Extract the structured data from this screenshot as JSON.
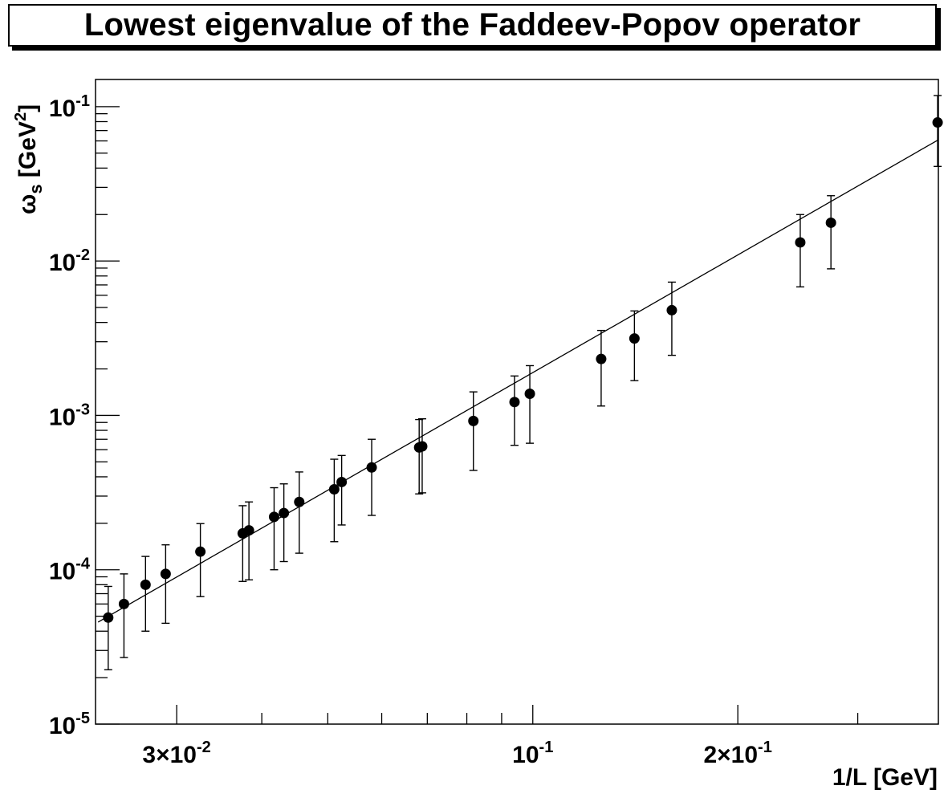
{
  "chart_data": {
    "type": "scatter",
    "title": "Lowest eigenvalue of the Faddeev-Popov operator",
    "xlabel": "1/L [GeV]",
    "ylabel": "ωs [GeV2]",
    "ylabel_parts": {
      "symbol": "ω",
      "subscript": "s",
      "unit_open": " [GeV",
      "power": "2",
      "unit_close": "]"
    },
    "x_scale": "log",
    "y_scale": "log",
    "xlim": [
      0.0228,
      0.394
    ],
    "ylim": [
      1e-05,
      0.15
    ],
    "x_ticks": [
      {
        "value": 0.03,
        "mantissa": "3×10",
        "exponent": "-2"
      },
      {
        "value": 0.1,
        "mantissa": "10",
        "exponent": "-1"
      },
      {
        "value": 0.2,
        "mantissa": "2×10",
        "exponent": "-1"
      }
    ],
    "y_ticks": [
      {
        "value": 1e-05,
        "mantissa": "10",
        "exponent": "-5"
      },
      {
        "value": 0.0001,
        "mantissa": "10",
        "exponent": "-4"
      },
      {
        "value": 0.001,
        "mantissa": "10",
        "exponent": "-3"
      },
      {
        "value": 0.01,
        "mantissa": "10",
        "exponent": "-2"
      },
      {
        "value": 0.1,
        "mantissa": "10",
        "exponent": "-1"
      }
    ],
    "grid": false,
    "legend": "none",
    "series": [
      {
        "points": [
          {
            "x": 0.0238,
            "y": 4.9e-05,
            "ylo": 2.25e-05,
            "yhi": 7.8e-05
          },
          {
            "x": 0.0251,
            "y": 6e-05,
            "ylo": 2.7e-05,
            "yhi": 9.4e-05
          },
          {
            "x": 0.027,
            "y": 8e-05,
            "ylo": 4e-05,
            "yhi": 0.000122
          },
          {
            "x": 0.0289,
            "y": 9.4e-05,
            "ylo": 4.5e-05,
            "yhi": 0.000145
          },
          {
            "x": 0.0325,
            "y": 0.000131,
            "ylo": 6.7e-05,
            "yhi": 0.000199
          },
          {
            "x": 0.0375,
            "y": 0.000172,
            "ylo": 8.4e-05,
            "yhi": 0.00026
          },
          {
            "x": 0.0383,
            "y": 0.00018,
            "ylo": 8.6e-05,
            "yhi": 0.000275
          },
          {
            "x": 0.0417,
            "y": 0.00022,
            "ylo": 0.0001,
            "yhi": 0.00034
          },
          {
            "x": 0.0431,
            "y": 0.000233,
            "ylo": 0.000113,
            "yhi": 0.00036
          },
          {
            "x": 0.0454,
            "y": 0.000275,
            "ylo": 0.000128,
            "yhi": 0.00043
          },
          {
            "x": 0.0511,
            "y": 0.000332,
            "ylo": 0.000152,
            "yhi": 0.00052
          },
          {
            "x": 0.0524,
            "y": 0.00037,
            "ylo": 0.000195,
            "yhi": 0.00055
          },
          {
            "x": 0.058,
            "y": 0.00046,
            "ylo": 0.000225,
            "yhi": 0.0007
          },
          {
            "x": 0.0681,
            "y": 0.00062,
            "ylo": 0.00031,
            "yhi": 0.00094
          },
          {
            "x": 0.0688,
            "y": 0.00063,
            "ylo": 0.000315,
            "yhi": 0.00095
          },
          {
            "x": 0.0818,
            "y": 0.00092,
            "ylo": 0.00044,
            "yhi": 0.00142
          },
          {
            "x": 0.094,
            "y": 0.00122,
            "ylo": 0.00064,
            "yhi": 0.0018
          },
          {
            "x": 0.099,
            "y": 0.00138,
            "ylo": 0.00066,
            "yhi": 0.0021
          },
          {
            "x": 0.126,
            "y": 0.00232,
            "ylo": 0.00115,
            "yhi": 0.00355
          },
          {
            "x": 0.141,
            "y": 0.00315,
            "ylo": 0.00168,
            "yhi": 0.00475
          },
          {
            "x": 0.16,
            "y": 0.0048,
            "ylo": 0.00245,
            "yhi": 0.0073
          },
          {
            "x": 0.247,
            "y": 0.0132,
            "ylo": 0.0068,
            "yhi": 0.02
          },
          {
            "x": 0.274,
            "y": 0.0177,
            "ylo": 0.0089,
            "yhi": 0.0265
          },
          {
            "x": 0.393,
            "y": 0.079,
            "ylo": 0.041,
            "yhi": 0.118
          }
        ]
      }
    ],
    "fit_line": {
      "x": [
        0.023,
        0.394
      ],
      "y": [
        4.58e-05,
        0.061
      ]
    }
  }
}
